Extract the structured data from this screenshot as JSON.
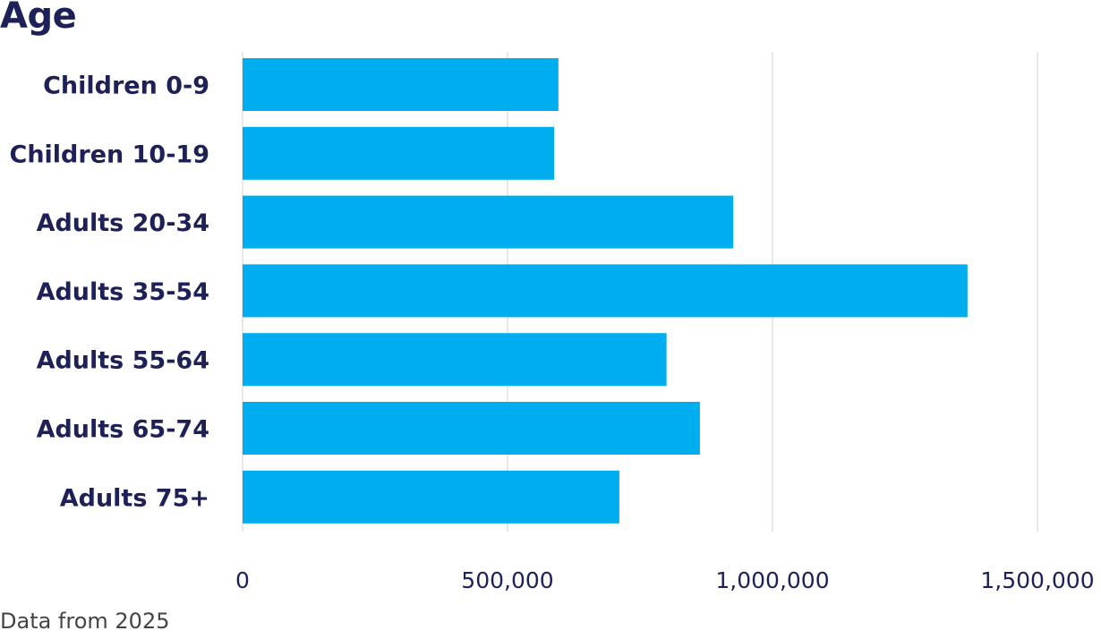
{
  "chart_data": {
    "type": "bar",
    "orientation": "horizontal",
    "title": "Age",
    "xlabel": "",
    "ylabel": "",
    "categories": [
      "Children 0-9",
      "Children 10-19",
      "Adults 20-34",
      "Adults 35-54",
      "Adults 55-64",
      "Adults 65-74",
      "Adults 75+"
    ],
    "values": [
      596000,
      588000,
      926000,
      1368000,
      800000,
      863000,
      711000
    ],
    "xlim": [
      0,
      1500000
    ],
    "x_ticks": [
      0,
      500000,
      1000000,
      1500000
    ],
    "x_tick_labels": [
      "0",
      "500,000",
      "1,000,000",
      "1,500,000"
    ],
    "grid": true,
    "bar_color": "#00adee",
    "grid_color": "#e0e0e0",
    "text_color": "#1e2158"
  },
  "footer": {
    "source": "Data from 2025"
  }
}
